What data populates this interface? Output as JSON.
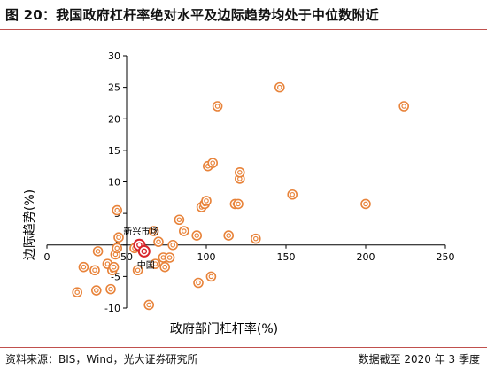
{
  "header": {
    "title": "图 20：我国政府杠杆率绝对水平及边际趋势均处于中位数附近"
  },
  "footer": {
    "source": "资料来源：BIS，Wind，光大证券研究所",
    "note": "数据截至 2020 年 3 季度"
  },
  "colors": {
    "accent": "#c0504d",
    "marker": "#e8833a",
    "highlight": "#d9262c"
  },
  "chart_data": {
    "type": "scatter",
    "title": "",
    "xlabel": "政府部门杠杆率(%)",
    "ylabel": "边际趋势(%)",
    "xlim": [
      0,
      250
    ],
    "ylim": [
      -10,
      30
    ],
    "xticks": [
      "0",
      "50",
      "100",
      "150",
      "200",
      "250"
    ],
    "yticks": [
      "-10",
      "-5",
      "0",
      "5",
      "10",
      "15",
      "20",
      "25",
      "30"
    ],
    "grid": false,
    "legend": "none",
    "points": [
      {
        "x": 19,
        "y": -7.5
      },
      {
        "x": 23,
        "y": -3.5
      },
      {
        "x": 30,
        "y": -4
      },
      {
        "x": 32,
        "y": -1
      },
      {
        "x": 31,
        "y": -7.2
      },
      {
        "x": 38,
        "y": -3
      },
      {
        "x": 40,
        "y": -7
      },
      {
        "x": 41,
        "y": -4
      },
      {
        "x": 42,
        "y": -3.5
      },
      {
        "x": 43,
        "y": -1.5
      },
      {
        "x": 44,
        "y": -0.5
      },
      {
        "x": 45,
        "y": 1.2
      },
      {
        "x": 44,
        "y": 5.5
      },
      {
        "x": 55,
        "y": -0.5
      },
      {
        "x": 57,
        "y": -4
      },
      {
        "x": 64,
        "y": -9.5
      },
      {
        "x": 67,
        "y": 2.2
      },
      {
        "x": 68,
        "y": -3
      },
      {
        "x": 70,
        "y": 0.5
      },
      {
        "x": 73,
        "y": -2
      },
      {
        "x": 74,
        "y": -3.5
      },
      {
        "x": 77,
        "y": -2
      },
      {
        "x": 79,
        "y": 0
      },
      {
        "x": 83,
        "y": 4
      },
      {
        "x": 86,
        "y": 2.2
      },
      {
        "x": 94,
        "y": 1.5
      },
      {
        "x": 95,
        "y": -6
      },
      {
        "x": 97,
        "y": 6
      },
      {
        "x": 99,
        "y": 6.5
      },
      {
        "x": 100,
        "y": 7
      },
      {
        "x": 101,
        "y": 12.5
      },
      {
        "x": 103,
        "y": -5
      },
      {
        "x": 104,
        "y": 13
      },
      {
        "x": 107,
        "y": 22
      },
      {
        "x": 114,
        "y": 1.5
      },
      {
        "x": 118,
        "y": 6.5
      },
      {
        "x": 120,
        "y": 6.5
      },
      {
        "x": 121,
        "y": 10.5
      },
      {
        "x": 121,
        "y": 11.5
      },
      {
        "x": 131,
        "y": 1
      },
      {
        "x": 146,
        "y": 25
      },
      {
        "x": 154,
        "y": 8
      },
      {
        "x": 200,
        "y": 6.5
      },
      {
        "x": 224,
        "y": 22
      }
    ],
    "annotations": [
      {
        "label": "新兴市场",
        "x": 58,
        "y": 0,
        "anchor": "above"
      },
      {
        "label": "中国",
        "x": 61,
        "y": -1,
        "anchor": "below"
      }
    ]
  }
}
